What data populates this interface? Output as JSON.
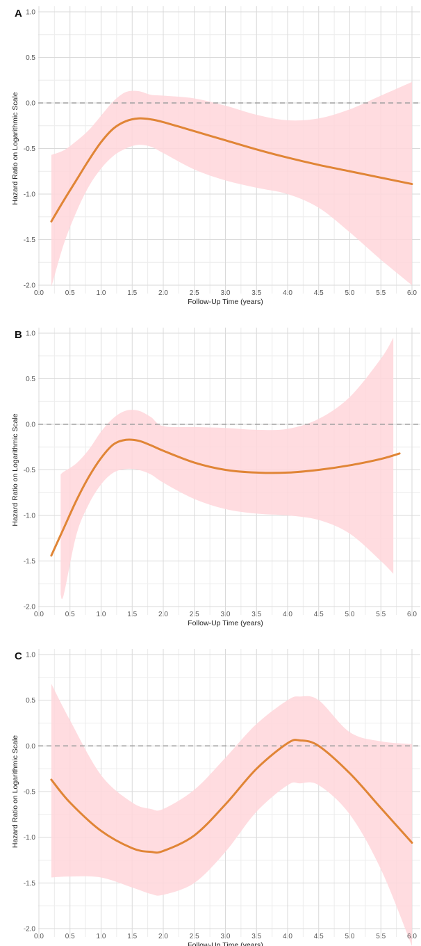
{
  "colors": {
    "line": "#e08536",
    "band": "#ffd6da",
    "grid": "#d9d9d9",
    "minor_grid": "#ececec",
    "reference": "#a0a0a0"
  },
  "chart_data": [
    {
      "type": "line",
      "panel_label": "A",
      "xlabel": "Follow-Up Time (years)",
      "ylabel": "Hazard Ratio on Logarithmic Scale",
      "xlim": [
        0.0,
        6.0
      ],
      "ylim": [
        -2.0,
        1.0
      ],
      "x_ticks": [
        "0.0",
        "0.5",
        "1.0",
        "1.5",
        "2.0",
        "2.5",
        "3.0",
        "3.5",
        "4.0",
        "4.5",
        "5.0",
        "5.5",
        "6.0"
      ],
      "y_ticks": [
        "1.0",
        "0.5",
        "0.0",
        "-0.5",
        "-1.0",
        "-1.5",
        "-2.0"
      ],
      "grid": true,
      "reference_line_y": 0.0,
      "x": [
        0.2,
        0.4,
        0.6,
        0.8,
        1.0,
        1.2,
        1.4,
        1.6,
        1.8,
        2.0,
        2.5,
        3.0,
        3.5,
        4.0,
        4.5,
        5.0,
        5.5,
        6.0
      ],
      "y": [
        -1.3,
        -1.07,
        -0.85,
        -0.63,
        -0.43,
        -0.28,
        -0.2,
        -0.17,
        -0.18,
        -0.21,
        -0.31,
        -0.41,
        -0.51,
        -0.6,
        -0.68,
        -0.75,
        -0.82,
        -0.89
      ],
      "lower": [
        -2.02,
        -1.55,
        -1.2,
        -0.92,
        -0.72,
        -0.58,
        -0.5,
        -0.46,
        -0.48,
        -0.55,
        -0.73,
        -0.85,
        -0.93,
        -1.0,
        -1.15,
        -1.42,
        -1.72,
        -2.0
      ],
      "upper": [
        -0.57,
        -0.52,
        -0.42,
        -0.3,
        -0.14,
        0.02,
        0.12,
        0.13,
        0.09,
        0.08,
        0.05,
        -0.03,
        -0.13,
        -0.19,
        -0.17,
        -0.07,
        0.08,
        0.23
      ]
    },
    {
      "type": "line",
      "panel_label": "B",
      "xlabel": "Follow-Up Time (years)",
      "ylabel": "Hazard Ratio on Logarithmic Scale",
      "xlim": [
        0.0,
        6.0
      ],
      "ylim": [
        -2.0,
        1.0
      ],
      "x_ticks": [
        "0.0",
        "0.5",
        "1.0",
        "1.5",
        "2.0",
        "2.5",
        "3.0",
        "3.5",
        "4.0",
        "4.5",
        "5.0",
        "5.5",
        "6.0"
      ],
      "y_ticks": [
        "1.0",
        "0.5",
        "0.0",
        "-0.5",
        "-1.0",
        "-1.5",
        "-2.0"
      ],
      "grid": true,
      "reference_line_y": 0.0,
      "x": [
        0.2,
        0.4,
        0.6,
        0.8,
        1.0,
        1.2,
        1.4,
        1.6,
        1.8,
        2.0,
        2.5,
        3.0,
        3.5,
        4.0,
        4.5,
        5.0,
        5.5,
        5.8
      ],
      "y": [
        -1.44,
        -1.14,
        -0.84,
        -0.58,
        -0.37,
        -0.22,
        -0.17,
        -0.18,
        -0.23,
        -0.29,
        -0.42,
        -0.5,
        -0.53,
        -0.53,
        -0.5,
        -0.45,
        -0.38,
        -0.32
      ],
      "lower": [
        null,
        -1.87,
        -1.22,
        -0.88,
        -0.66,
        -0.53,
        -0.49,
        -0.5,
        -0.55,
        -0.64,
        -0.82,
        -0.93,
        -0.98,
        -1.0,
        -1.05,
        -1.2,
        -1.5,
        null
      ],
      "upper": [
        null,
        -0.52,
        -0.43,
        -0.28,
        -0.08,
        0.07,
        0.15,
        0.15,
        0.08,
        -0.02,
        -0.03,
        -0.04,
        -0.06,
        -0.05,
        0.06,
        0.3,
        0.72,
        null
      ],
      "band_x_start": 0.35,
      "band_x_end": 5.7,
      "band_lower_start": -1.87,
      "band_upper_start": -0.55,
      "band_lower_end": -1.64,
      "band_upper_end": 0.95
    },
    {
      "type": "line",
      "panel_label": "C",
      "xlabel": "Follow-Up Time (years)",
      "ylabel": "Hazard Ratio on Logarithmic Scale",
      "xlim": [
        0.0,
        6.0
      ],
      "ylim": [
        -2.0,
        1.0
      ],
      "x_ticks": [
        "0.0",
        "0.5",
        "1.0",
        "1.5",
        "2.0",
        "2.5",
        "3.0",
        "3.5",
        "4.0",
        "4.5",
        "5.0",
        "5.5",
        "6.0"
      ],
      "y_ticks": [
        "1.0",
        "0.5",
        "0.0",
        "-0.5",
        "-1.0",
        "-1.5",
        "-2.0"
      ],
      "grid": true,
      "reference_line_y": 0.0,
      "x": [
        0.2,
        0.5,
        1.0,
        1.5,
        1.8,
        2.0,
        2.5,
        3.0,
        3.5,
        4.0,
        4.2,
        4.5,
        5.0,
        5.5,
        6.0
      ],
      "y": [
        -0.37,
        -0.62,
        -0.93,
        -1.12,
        -1.16,
        -1.15,
        -0.98,
        -0.64,
        -0.25,
        0.03,
        0.06,
        0.0,
        -0.3,
        -0.68,
        -1.06
      ],
      "lower": [
        -1.44,
        -1.43,
        -1.44,
        -1.55,
        -1.62,
        -1.63,
        -1.5,
        -1.16,
        -0.72,
        -0.43,
        -0.41,
        -0.43,
        -0.75,
        -1.35,
        -2.19
      ],
      "upper": [
        0.68,
        0.28,
        -0.32,
        -0.62,
        -0.69,
        -0.69,
        -0.48,
        -0.13,
        0.24,
        0.5,
        0.54,
        0.5,
        0.15,
        0.05,
        0.02
      ]
    }
  ]
}
